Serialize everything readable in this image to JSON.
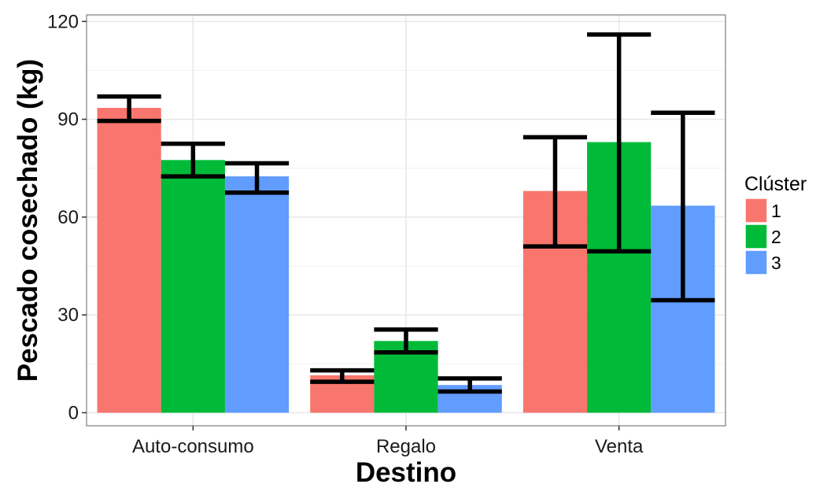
{
  "chart_data": {
    "type": "bar",
    "xlabel": "Destino",
    "ylabel": "Pescado cosechado (kg)",
    "categories": [
      "Auto-consumo",
      "Regalo",
      "Venta"
    ],
    "ylim": [
      -4,
      122
    ],
    "yticks": [
      0,
      30,
      60,
      90,
      120
    ],
    "grid": true,
    "legend": {
      "title": "Clúster",
      "placement": "right"
    },
    "series": [
      {
        "name": "1",
        "color": "#F8766D",
        "values": [
          93.5,
          11.5,
          68
        ],
        "error_low": [
          89.5,
          9.5,
          51
        ],
        "error_high": [
          97,
          13,
          84.5
        ]
      },
      {
        "name": "2",
        "color": "#00BA38",
        "values": [
          77.5,
          22,
          83
        ],
        "error_low": [
          72.5,
          18.5,
          49.5
        ],
        "error_high": [
          82.5,
          25.5,
          116
        ]
      },
      {
        "name": "3",
        "color": "#619CFF",
        "values": [
          72.5,
          8.5,
          63.5
        ],
        "error_low": [
          67.5,
          6.5,
          34.5
        ],
        "error_high": [
          76.5,
          10.5,
          92
        ]
      }
    ]
  }
}
